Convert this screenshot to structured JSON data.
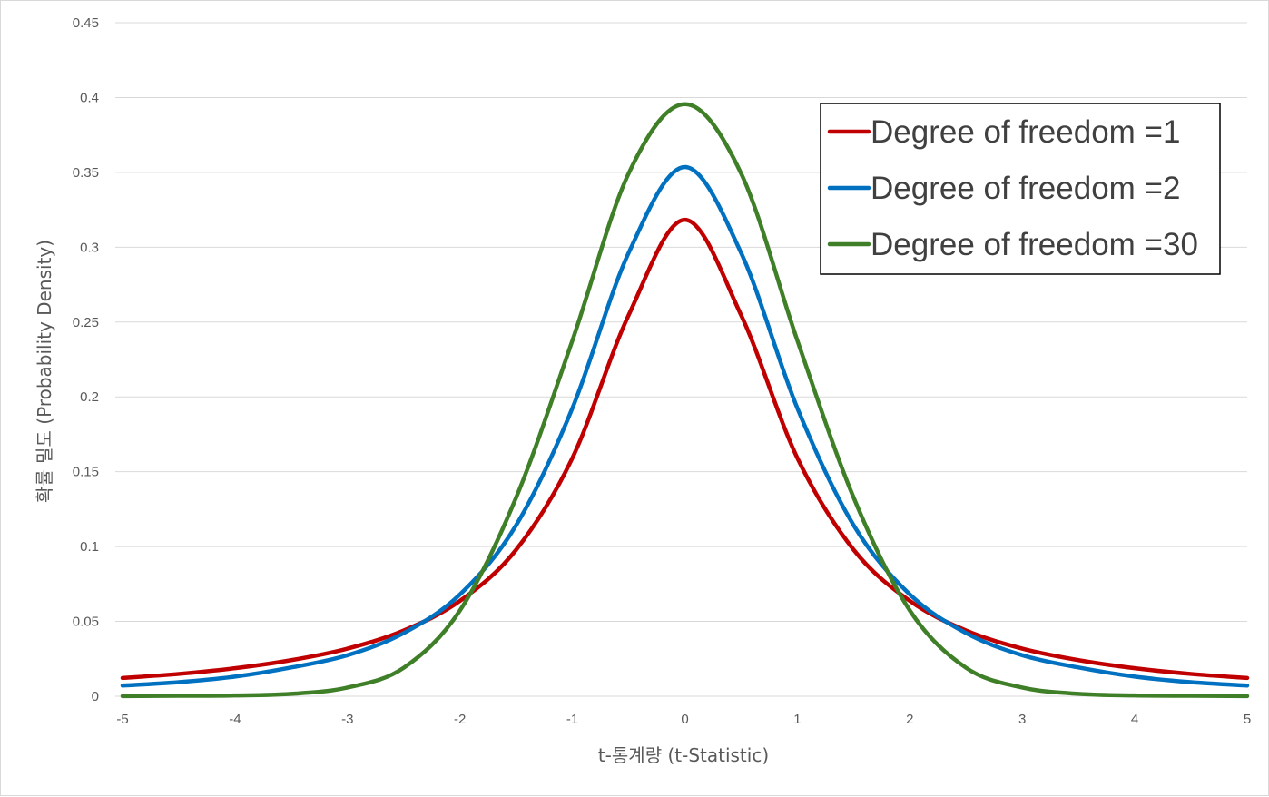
{
  "chart_data": {
    "type": "line",
    "xlabel": "t-통계량 (t-Statistic)",
    "ylabel": "확률 밀도 (Probability Density)",
    "xlim": [
      -5,
      5
    ],
    "ylim": [
      0,
      0.45
    ],
    "x_ticks": [
      -5,
      -4,
      -3,
      -2,
      -1,
      0,
      1,
      2,
      3,
      4,
      5
    ],
    "x_tick_labels": [
      "-5",
      "-4",
      "-3",
      "-2",
      "-1",
      "0",
      "1",
      "2",
      "3",
      "4",
      "5"
    ],
    "y_ticks": [
      0,
      0.05,
      0.1,
      0.15,
      0.2,
      0.25,
      0.3,
      0.35,
      0.4,
      0.45
    ],
    "y_tick_labels": [
      "0",
      "0.05",
      "0.1",
      "0.15",
      "0.2",
      "0.25",
      "0.3",
      "0.35",
      "0.4",
      "0.45"
    ],
    "grid": true,
    "legend_position": "top-right",
    "x": [
      -5,
      -4.5,
      -4,
      -3.5,
      -3,
      -2.5,
      -2,
      -1.5,
      -1,
      -0.5,
      0,
      0.5,
      1,
      1.5,
      2,
      2.5,
      3,
      3.5,
      4,
      4.5,
      5
    ],
    "series": [
      {
        "name": "Degree of freedom =1",
        "color": "#c00000",
        "values": [
          0.0122,
          0.0149,
          0.0187,
          0.0241,
          0.0318,
          0.0439,
          0.0637,
          0.0979,
          0.1592,
          0.2546,
          0.3183,
          0.2546,
          0.1592,
          0.0979,
          0.0637,
          0.0439,
          0.0318,
          0.0241,
          0.0187,
          0.0149,
          0.0122
        ]
      },
      {
        "name": "Degree of freedom =2",
        "color": "#0070c0",
        "values": [
          0.0071,
          0.0094,
          0.0131,
          0.0192,
          0.0274,
          0.0422,
          0.068,
          0.1143,
          0.1925,
          0.2962,
          0.3536,
          0.2962,
          0.1925,
          0.1143,
          0.068,
          0.0422,
          0.0274,
          0.0192,
          0.0131,
          0.0094,
          0.0071
        ]
      },
      {
        "name": "Degree of freedom =30",
        "color": "#3f7f28",
        "values": [
          0.0001,
          0.0003,
          0.0005,
          0.0016,
          0.0058,
          0.019,
          0.0573,
          0.1328,
          0.2377,
          0.3493,
          0.3956,
          0.3493,
          0.2377,
          0.1328,
          0.0573,
          0.019,
          0.0058,
          0.0016,
          0.0005,
          0.0003,
          0.0001
        ]
      }
    ]
  }
}
